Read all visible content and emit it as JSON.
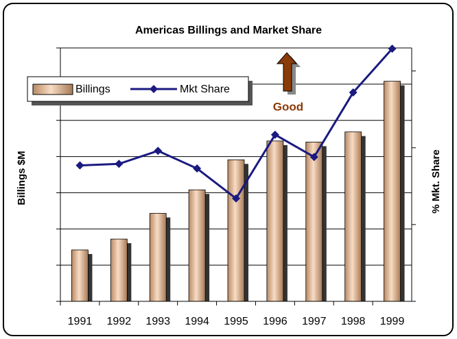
{
  "chart_data": {
    "type": "bar",
    "title": "Americas Billings and Market Share",
    "categories": [
      "1991",
      "1992",
      "1993",
      "1994",
      "1995",
      "1996",
      "1997",
      "1998",
      "1999"
    ],
    "series": [
      {
        "name": "Billings",
        "type": "bar",
        "color": "#e8b896",
        "values": [
          1.42,
          1.72,
          2.43,
          3.08,
          3.91,
          4.43,
          4.4,
          4.68,
          6.08
        ]
      },
      {
        "name": "Mkt Share",
        "type": "line",
        "axis": "y2",
        "color": "#1a1a80",
        "values": [
          1.77,
          1.79,
          1.96,
          1.73,
          1.34,
          2.17,
          1.88,
          2.72,
          3.29
        ]
      }
    ],
    "y_label": "Billings $M",
    "y2_label": "% Mkt. Share",
    "ylim": [
      0,
      7
    ],
    "yticks": [
      0,
      1,
      2,
      3,
      4,
      5,
      6,
      7
    ],
    "y2lim": [
      0,
      3.3
    ],
    "y2ticks": [
      0,
      1,
      2,
      3
    ],
    "grid": true,
    "legend": "upper left",
    "annotation": "Good"
  }
}
